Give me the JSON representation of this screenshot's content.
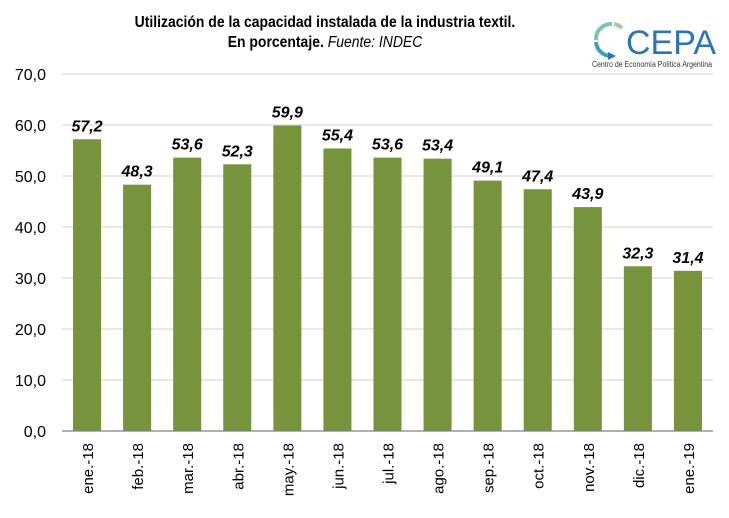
{
  "title": {
    "line1": "Utilización de la capacidad instalada de la industria textil.",
    "line2_bold": "En porcentaje.",
    "line2_italic": " Fuente: INDEC"
  },
  "logo": {
    "name": "CEPA",
    "subtitle": "Centro de Economía Política Argentina",
    "color": "#2e74b5",
    "ring_color": "#5bb5a2"
  },
  "chart_data": {
    "type": "bar",
    "title": "Utilización de la capacidad instalada de la industria textil. En porcentaje. Fuente: INDEC",
    "xlabel": "",
    "ylabel": "",
    "categories": [
      "ene.-18",
      "feb.-18",
      "mar.-18",
      "abr.-18",
      "may.-18",
      "jun.-18",
      "jul.-18",
      "ago.-18",
      "sep.-18",
      "oct.-18",
      "nov.-18",
      "dic.-18",
      "ene.-19"
    ],
    "values": [
      57.2,
      48.3,
      53.6,
      52.3,
      59.9,
      55.4,
      53.6,
      53.4,
      49.1,
      47.4,
      43.9,
      32.3,
      31.4
    ],
    "data_labels": [
      "57,2",
      "48,3",
      "53,6",
      "52,3",
      "59,9",
      "55,4",
      "53,6",
      "53,4",
      "49,1",
      "47,4",
      "43,9",
      "32,3",
      "31,4"
    ],
    "ylim": [
      0,
      70
    ],
    "yticks": [
      "0,0",
      "10,0",
      "20,0",
      "30,0",
      "40,0",
      "50,0",
      "60,0",
      "70,0"
    ],
    "grid": true,
    "bar_color": "#77933c",
    "grid_color": "#d9d9d9",
    "axis_color": "#808080",
    "legend": "none"
  }
}
